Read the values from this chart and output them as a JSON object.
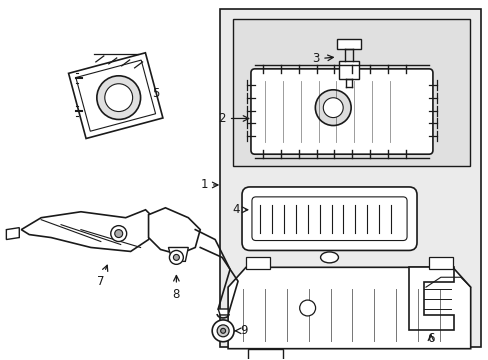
{
  "bg_color": "#ffffff",
  "line_color": "#1a1a1a",
  "gray_fill": "#e8e8e8",
  "light_fill": "#f0f0f0",
  "figsize": [
    4.89,
    3.6
  ],
  "dpi": 100
}
